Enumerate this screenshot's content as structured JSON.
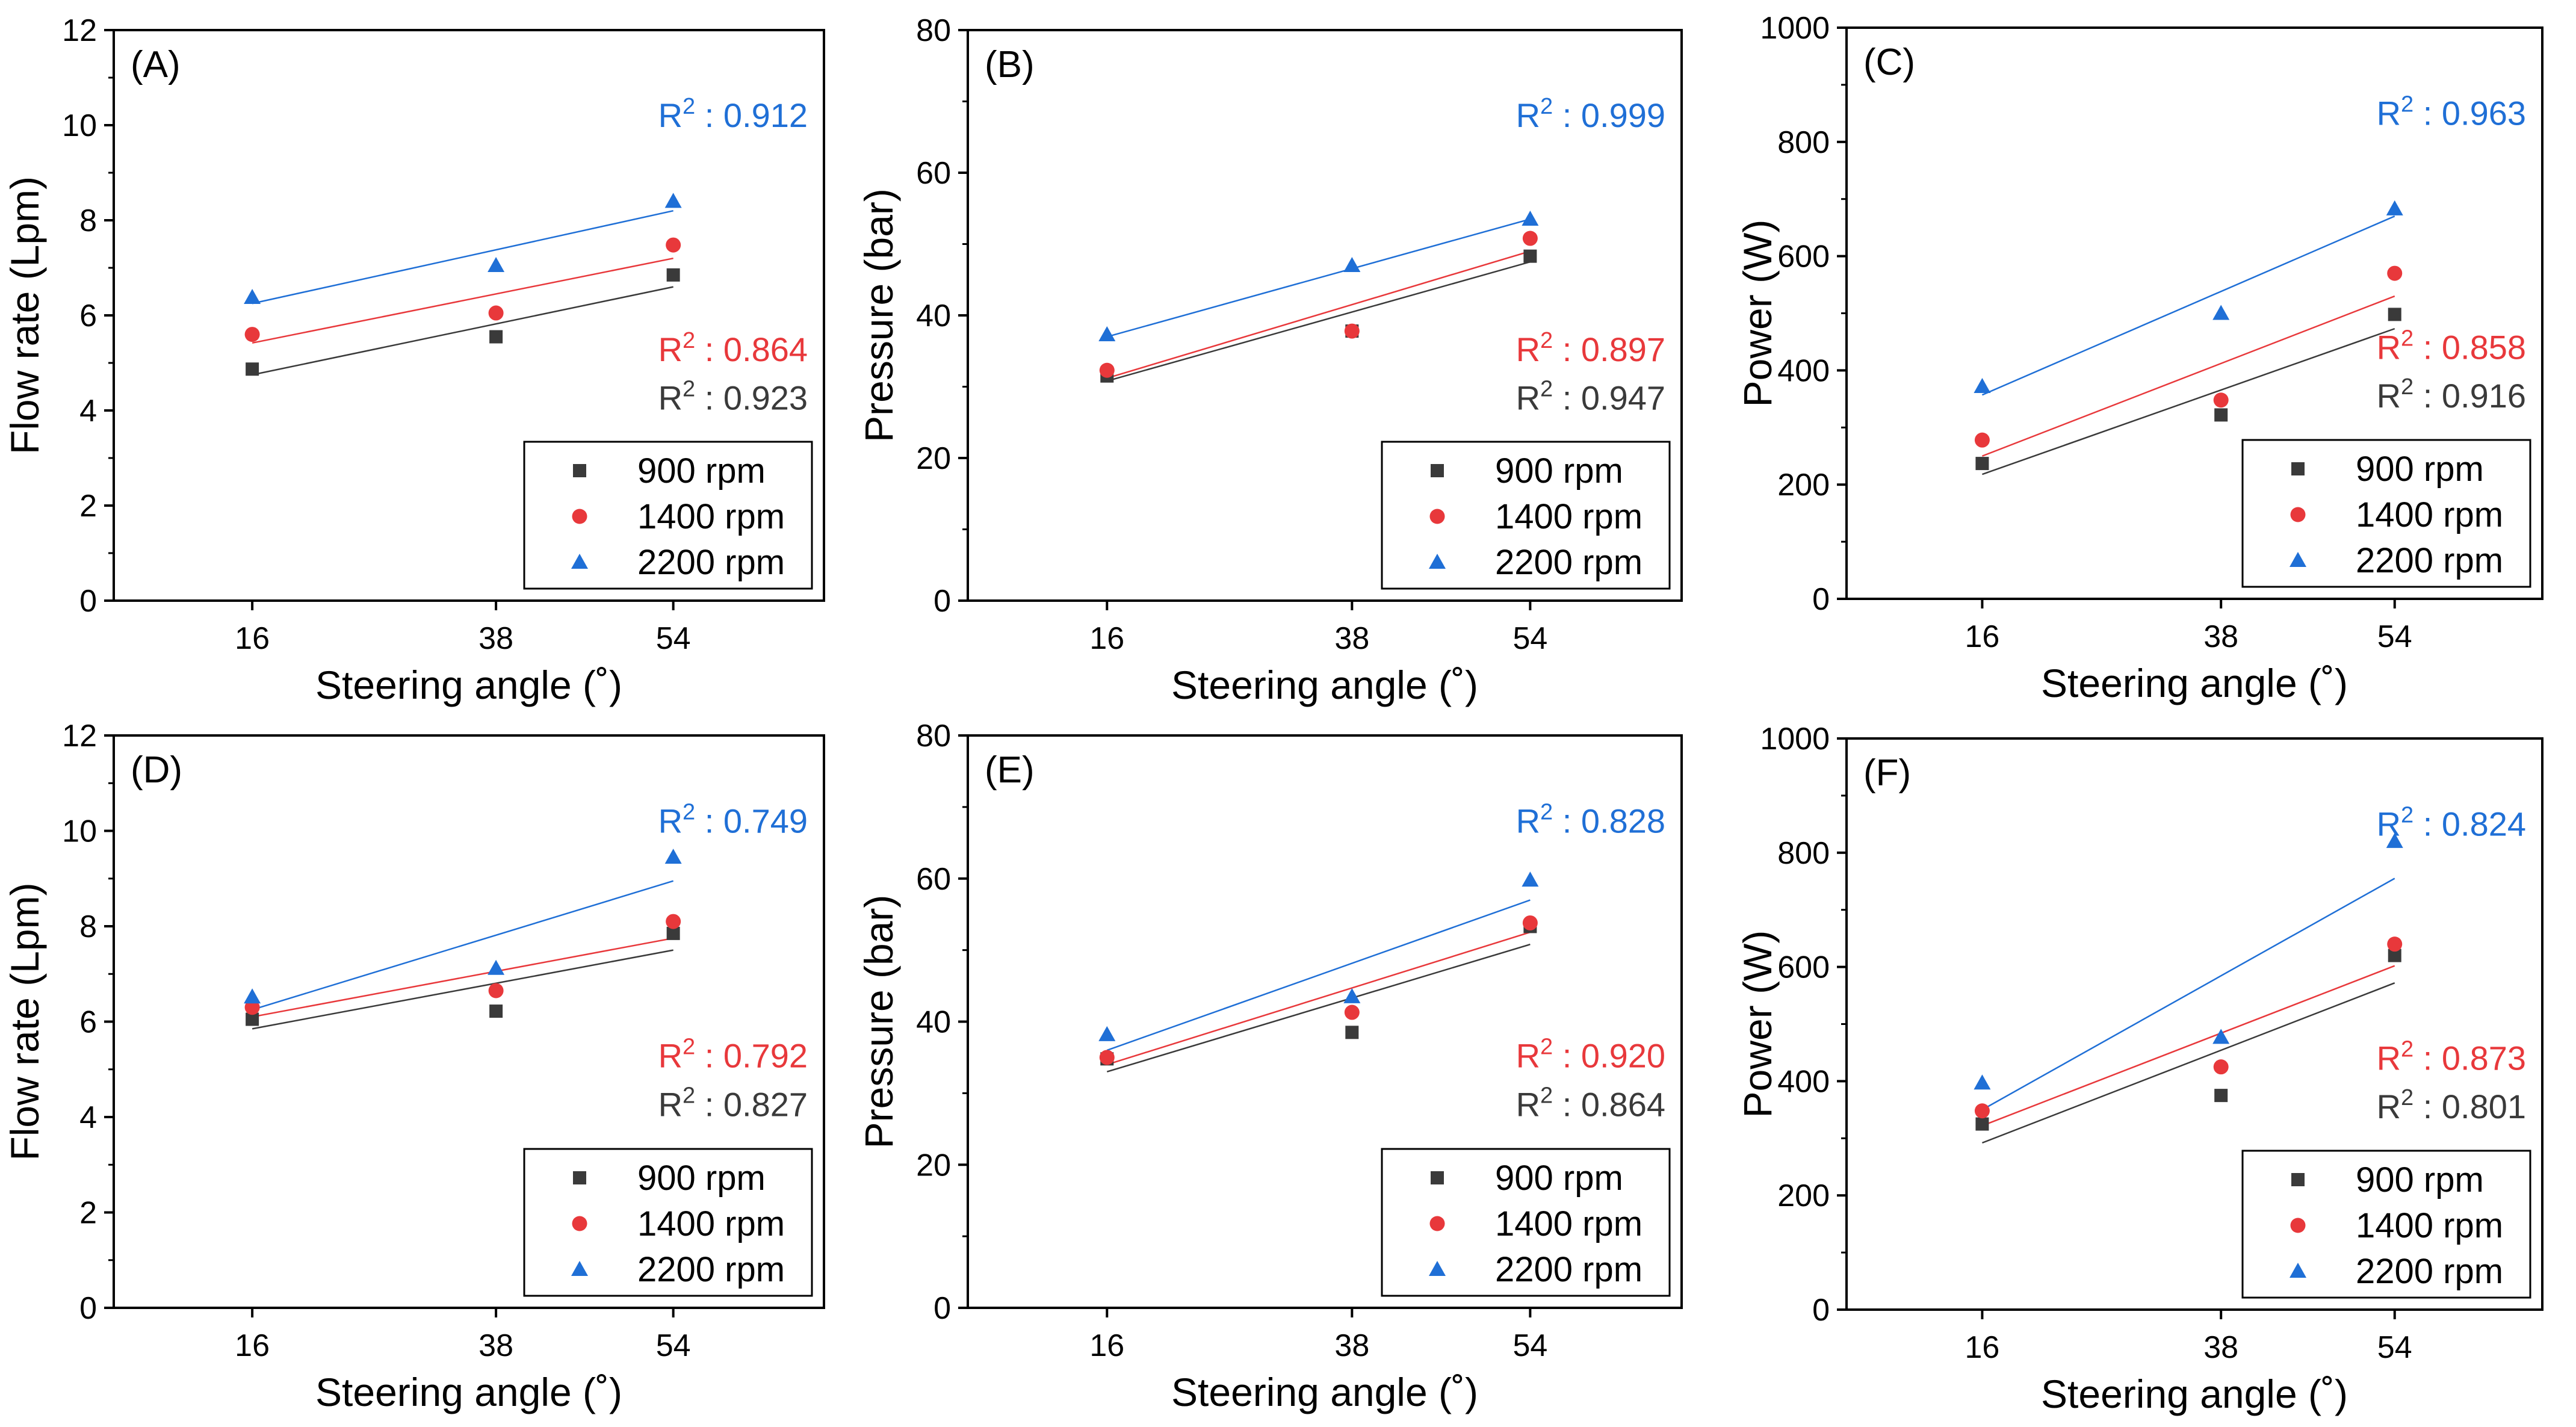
{
  "figure": "Six-panel chart of hydraulic flow rate, pressure and power versus steering angle at three pump speeds",
  "colors": {
    "900 rpm": "#3a3a3a",
    "1400 rpm": "#e8383b",
    "2200 rpm": "#1f6fd6"
  },
  "chart_data": [
    {
      "type": "scatter",
      "panel": "(A)",
      "xlabel": "Steering angle (˚)",
      "ylabel": "Flow rate (Lpm)",
      "x": [
        16,
        38,
        54
      ],
      "xticks": [
        "16",
        "38",
        "54"
      ],
      "ylim": [
        0,
        12
      ],
      "yticks": [
        0,
        2,
        4,
        6,
        8,
        10,
        12
      ],
      "legend_position": "bottom-right",
      "series": [
        {
          "name": "900 rpm",
          "marker": "square",
          "values": [
            4.87,
            5.55,
            6.85
          ],
          "fit": [
            4.75,
            6.6
          ],
          "r2_label": "R",
          "r2_sup": "2",
          "r2_value": " : 0.923"
        },
        {
          "name": "1400 rpm",
          "marker": "circle",
          "values": [
            5.6,
            6.05,
            7.48
          ],
          "fit": [
            5.42,
            7.2
          ],
          "r2_label": "R",
          "r2_sup": "2",
          "r2_value": " : 0.864"
        },
        {
          "name": "2200 rpm",
          "marker": "triangle",
          "values": [
            6.38,
            7.05,
            8.4
          ],
          "fit": [
            6.25,
            8.2
          ],
          "r2_label": "R",
          "r2_sup": "2",
          "r2_value": " : 0.912"
        }
      ]
    },
    {
      "type": "scatter",
      "panel": "(B)",
      "xlabel": "Steering angle (˚)",
      "ylabel": "Pressure (bar)",
      "x": [
        16,
        38,
        54
      ],
      "xticks": [
        "16",
        "38",
        "54"
      ],
      "ylim": [
        0,
        80
      ],
      "yticks": [
        0,
        20,
        40,
        60,
        80
      ],
      "legend_position": "bottom-right",
      "series": [
        {
          "name": "900 rpm",
          "marker": "square",
          "values": [
            31.5,
            37.8,
            48.3
          ],
          "fit": [
            30.8,
            47.5
          ],
          "r2_label": "R",
          "r2_sup": "2",
          "r2_value": " : 0.947"
        },
        {
          "name": "1400 rpm",
          "marker": "circle",
          "values": [
            32.3,
            37.8,
            50.8
          ],
          "fit": [
            31.2,
            49.0
          ],
          "r2_label": "R",
          "r2_sup": "2",
          "r2_value": " : 0.897"
        },
        {
          "name": "2200 rpm",
          "marker": "triangle",
          "values": [
            37.3,
            47.0,
            53.5
          ],
          "fit": [
            37.0,
            53.5
          ],
          "r2_label": "R",
          "r2_sup": "2",
          "r2_value": " : 0.999"
        }
      ]
    },
    {
      "type": "scatter",
      "panel": "(C)",
      "xlabel": "Steering angle (˚)",
      "ylabel": "Power (W)",
      "x": [
        16,
        38,
        54
      ],
      "xticks": [
        "16",
        "38",
        "54"
      ],
      "ylim": [
        0,
        1000
      ],
      "yticks": [
        0,
        200,
        400,
        600,
        800,
        1000
      ],
      "legend_position": "bottom-right",
      "series": [
        {
          "name": "900 rpm",
          "marker": "square",
          "values": [
            237,
            322,
            498
          ],
          "fit": [
            218,
            473
          ],
          "r2_label": "R",
          "r2_sup": "2",
          "r2_value": " : 0.916"
        },
        {
          "name": "1400 rpm",
          "marker": "circle",
          "values": [
            278,
            348,
            570
          ],
          "fit": [
            250,
            530
          ],
          "r2_label": "R",
          "r2_sup": "2",
          "r2_value": " : 0.858"
        },
        {
          "name": "2200 rpm",
          "marker": "triangle",
          "values": [
            372,
            500,
            683
          ],
          "fit": [
            357,
            670
          ],
          "r2_label": "R",
          "r2_sup": "2",
          "r2_value": " : 0.963"
        }
      ]
    },
    {
      "type": "scatter",
      "panel": "(D)",
      "xlabel": "Steering angle (˚)",
      "ylabel": "Flow rate (Lpm)",
      "x": [
        16,
        38,
        54
      ],
      "xticks": [
        "16",
        "38",
        "54"
      ],
      "ylim": [
        0,
        12
      ],
      "yticks": [
        0,
        2,
        4,
        6,
        8,
        10,
        12
      ],
      "legend_position": "bottom-right",
      "series": [
        {
          "name": "900 rpm",
          "marker": "square",
          "values": [
            6.05,
            6.22,
            7.85
          ],
          "fit": [
            5.85,
            7.5
          ],
          "r2_label": "R",
          "r2_sup": "2",
          "r2_value": " : 0.827"
        },
        {
          "name": "1400 rpm",
          "marker": "circle",
          "values": [
            6.3,
            6.65,
            8.1
          ],
          "fit": [
            6.1,
            7.75
          ],
          "r2_label": "R",
          "r2_sup": "2",
          "r2_value": " : 0.792"
        },
        {
          "name": "2200 rpm",
          "marker": "triangle",
          "values": [
            6.52,
            7.12,
            9.45
          ],
          "fit": [
            6.25,
            8.95
          ],
          "r2_label": "R",
          "r2_sup": "2",
          "r2_value": " : 0.749"
        }
      ]
    },
    {
      "type": "scatter",
      "panel": "(E)",
      "xlabel": "Steering angle (˚)",
      "ylabel": "Pressure (bar)",
      "x": [
        16,
        38,
        54
      ],
      "xticks": [
        "16",
        "38",
        "54"
      ],
      "ylim": [
        0,
        80
      ],
      "yticks": [
        0,
        20,
        40,
        60,
        80
      ],
      "legend_position": "bottom-right",
      "series": [
        {
          "name": "900 rpm",
          "marker": "square",
          "values": [
            34.8,
            38.5,
            53.3
          ],
          "fit": [
            33.0,
            50.8
          ],
          "r2_label": "R",
          "r2_sup": "2",
          "r2_value": " : 0.864"
        },
        {
          "name": "1400 rpm",
          "marker": "circle",
          "values": [
            35.0,
            41.3,
            53.8
          ],
          "fit": [
            34.0,
            52.5
          ],
          "r2_label": "R",
          "r2_sup": "2",
          "r2_value": " : 0.920"
        },
        {
          "name": "2200 rpm",
          "marker": "triangle",
          "values": [
            38.2,
            43.5,
            59.8
          ],
          "fit": [
            36.0,
            57.0
          ],
          "r2_label": "R",
          "r2_sup": "2",
          "r2_value": " : 0.828"
        }
      ]
    },
    {
      "type": "scatter",
      "panel": "(F)",
      "xlabel": "Steering angle (˚)",
      "ylabel": "Power (W)",
      "x": [
        16,
        38,
        54
      ],
      "xticks": [
        "16",
        "38",
        "54"
      ],
      "ylim": [
        0,
        1000
      ],
      "yticks": [
        0,
        200,
        400,
        600,
        800,
        1000
      ],
      "legend_position": "bottom-right",
      "series": [
        {
          "name": "900 rpm",
          "marker": "square",
          "values": [
            325,
            375,
            620
          ],
          "fit": [
            292,
            572
          ],
          "r2_label": "R",
          "r2_sup": "2",
          "r2_value": " : 0.801"
        },
        {
          "name": "1400 rpm",
          "marker": "circle",
          "values": [
            348,
            425,
            640
          ],
          "fit": [
            322,
            602
          ],
          "r2_label": "R",
          "r2_sup": "2",
          "r2_value": " : 0.873"
        },
        {
          "name": "2200 rpm",
          "marker": "triangle",
          "values": [
            397,
            477,
            820
          ],
          "fit": [
            350,
            755
          ],
          "r2_label": "R",
          "r2_sup": "2",
          "r2_value": " : 0.824"
        }
      ]
    }
  ]
}
